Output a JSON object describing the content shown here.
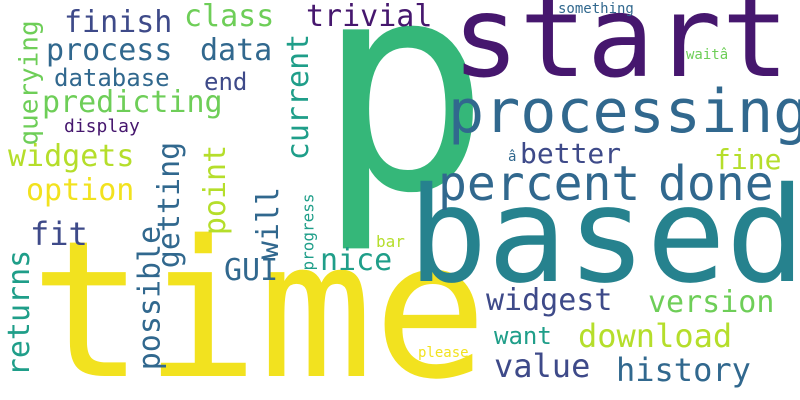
{
  "wordcloud": {
    "colors": {
      "purple": "#46176e",
      "indigo": "#3e4a89",
      "slate": "#31688e",
      "teal": "#26828e",
      "teal_green": "#1f9e89",
      "green": "#35b779",
      "lime": "#6ece58",
      "yellow_green": "#b5de2b",
      "yellow": "#f2e21f",
      "background": "#ffffff"
    },
    "words": {
      "p": "p",
      "start": "start",
      "time": "time",
      "based": "based",
      "processing": "processing",
      "percent": "percent",
      "done": "done",
      "trivial": "trivial",
      "class": "class",
      "finish": "finish",
      "process": "process",
      "data": "data",
      "database": "database",
      "end": "end",
      "predicting": "predicting",
      "display": "display",
      "widgets": "widgets",
      "querying": "querying",
      "option": "option",
      "fit": "fit",
      "returns": "returns",
      "possible": "possible",
      "getting": "getting",
      "point": "point",
      "current": "current",
      "will": "will",
      "GUI": "GUI",
      "progress": "progress",
      "nice": "nice",
      "bar": "bar",
      "better": "better",
      "fine": "fine",
      "version": "version",
      "widgest": "widgest",
      "want": "want",
      "download": "download",
      "value": "value",
      "history": "history",
      "please": "please",
      "something": "something",
      "wait": "waitâ",
      "a_hat": "â"
    }
  }
}
